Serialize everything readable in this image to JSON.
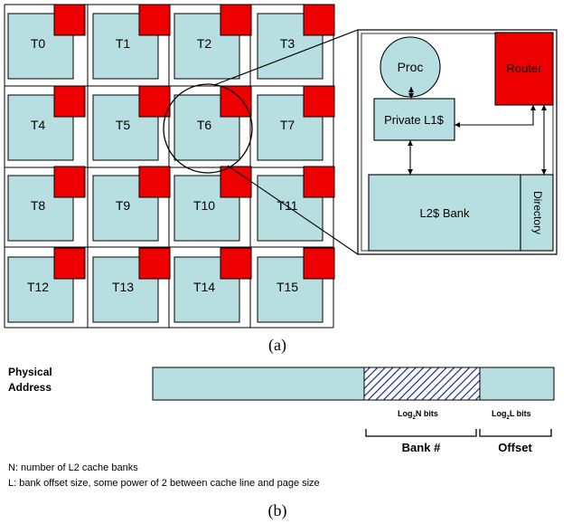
{
  "tiles": [
    "T0",
    "T1",
    "T2",
    "T3",
    "T4",
    "T5",
    "T6",
    "T7",
    "T8",
    "T9",
    "T10",
    "T11",
    "T12",
    "T13",
    "T14",
    "T15"
  ],
  "zoomed_tile": {
    "proc_label": "Proc",
    "router_label": "Router",
    "l1_label": "Private L1$",
    "l2_label": "L2$ Bank",
    "directory_label": "Directory"
  },
  "caption_a": "(a)",
  "caption_b": "(b)",
  "address": {
    "label_line1": "Physical",
    "label_line2": "Address",
    "bank_field_label": "Log",
    "bank_field_sub": "2",
    "bank_field_rest": "N bits",
    "offset_field_label": "Log",
    "offset_field_sub": "2",
    "offset_field_rest": "L bits",
    "bank_brace_label": "Bank #",
    "offset_brace_label": "Offset"
  },
  "notes": {
    "n_note": "N: number of L2 cache banks",
    "l_note": "L: bank offset size, some power of 2 between cache line and page size"
  },
  "colors": {
    "tile_fill": "#b7dee0",
    "router_fill": "#ee0000",
    "border": "#000000"
  }
}
